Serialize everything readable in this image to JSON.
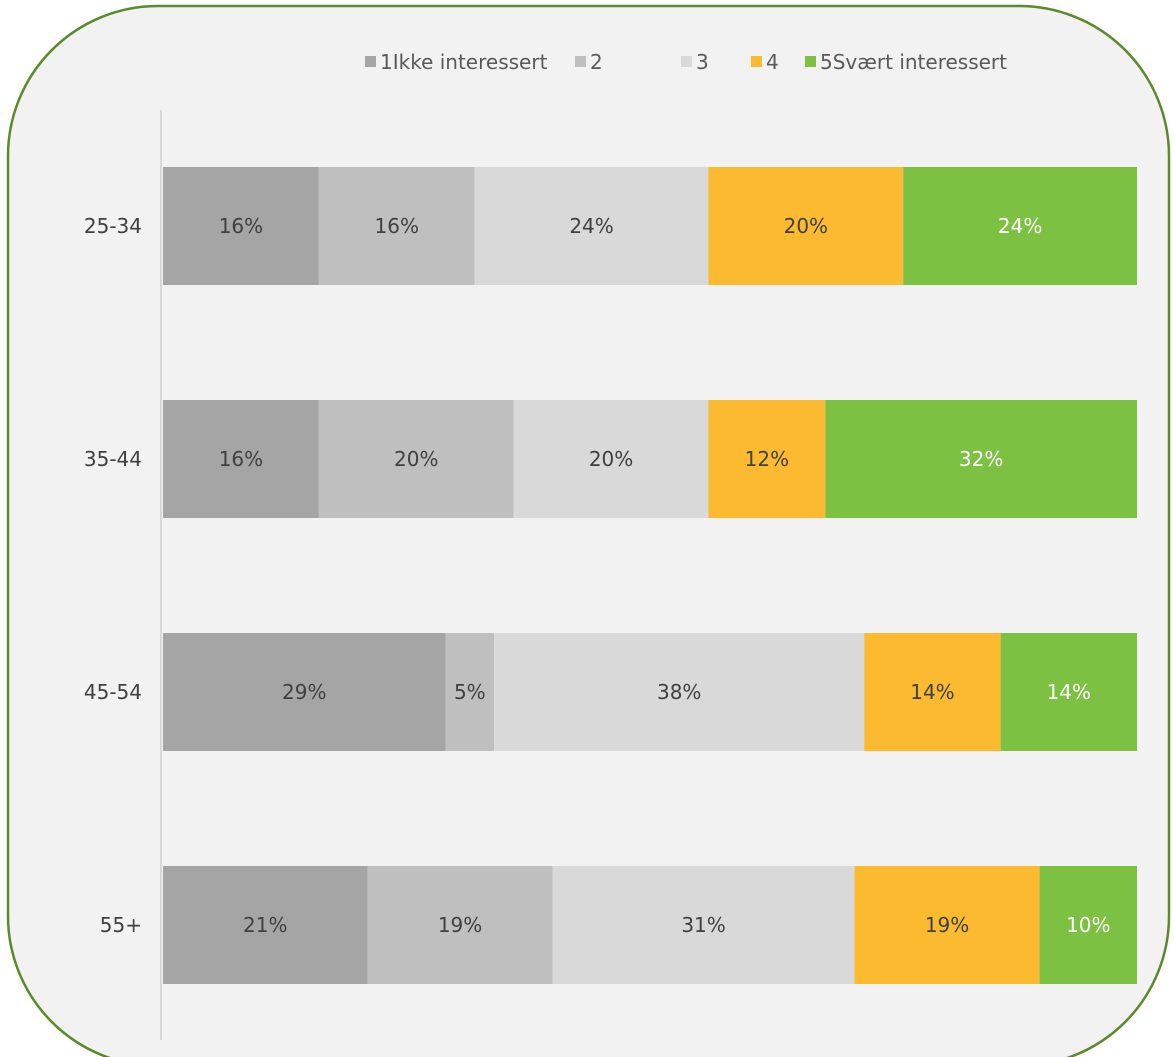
{
  "chart_data": {
    "type": "bar",
    "orientation": "horizontal",
    "stacked": "100%",
    "categories": [
      "25-34",
      "35-44",
      "45-54",
      "55+"
    ],
    "series": [
      {
        "name": "1Ikke interessert",
        "color": "#a5a5a5",
        "label_color": "#404040",
        "values": [
          16,
          16,
          29,
          21
        ]
      },
      {
        "name": "2",
        "color": "#bfbfbf",
        "label_color": "#404040",
        "values": [
          16,
          20,
          5,
          19
        ]
      },
      {
        "name": "3",
        "color": "#d9d9d9",
        "label_color": "#404040",
        "values": [
          24,
          20,
          38,
          31
        ]
      },
      {
        "name": "4",
        "color": "#fbba2f",
        "label_color": "#404040",
        "values": [
          20,
          12,
          14,
          19
        ]
      },
      {
        "name": "5Svært interessert",
        "color": "#7dc142",
        "label_color": "#ffffff",
        "values": [
          24,
          32,
          14,
          10
        ]
      }
    ],
    "value_suffix": "%",
    "legend_position": "top",
    "grid": false
  },
  "colors": {
    "border": "#5b8a2a",
    "plot_background": "#f2f2f2",
    "axis": "#d0d0d0"
  }
}
